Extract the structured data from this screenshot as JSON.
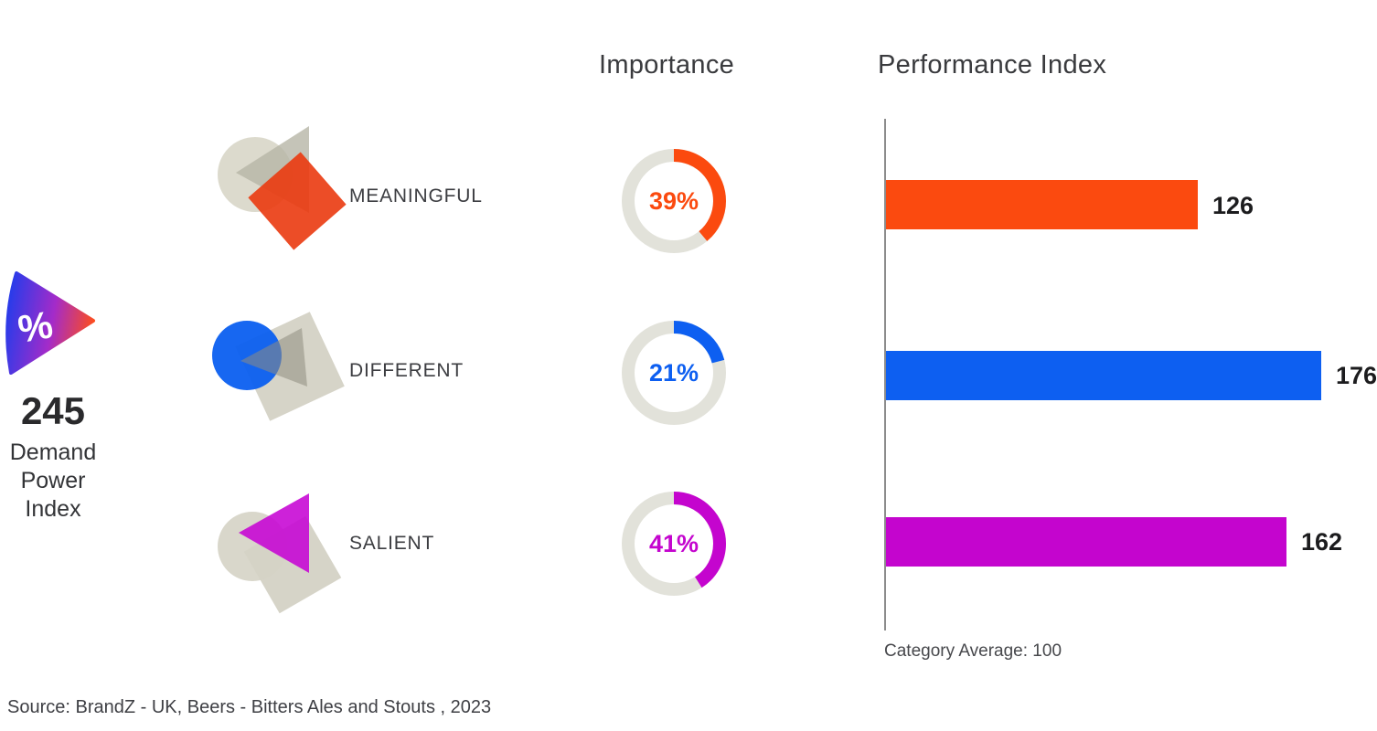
{
  "header": {
    "importance": "Importance",
    "performance": "Performance Index"
  },
  "demand_power": {
    "value": "245",
    "label_lines": [
      "Demand",
      "Power",
      "Index"
    ],
    "icon": "percent-wedge-icon",
    "gradient": [
      "#2b3be9",
      "#a42bc9",
      "#ff4e1a"
    ]
  },
  "metrics": [
    {
      "id": "meaningful",
      "label": "MEANINGFUL",
      "importance_pct": 39,
      "importance_label": "39%",
      "performance": 126,
      "color": "#fb4a0f"
    },
    {
      "id": "different",
      "label": "DIFFERENT",
      "importance_pct": 21,
      "importance_label": "21%",
      "performance": 176,
      "color": "#0d5ff1"
    },
    {
      "id": "salient",
      "label": "SALIENT",
      "importance_pct": 41,
      "importance_label": "41%",
      "performance": 162,
      "color": "#c405ce"
    }
  ],
  "axis_note": "Category Average: 100",
  "source": "Source: BrandZ - UK, Beers - Bitters Ales and Stouts , 2023",
  "colors": {
    "donut_track": "#e2e2da",
    "axis_line": "#8c8c8c",
    "neutral_shape_beige": "#d8d6c8",
    "neutral_shape_grey": "#b7b5a6"
  },
  "chart_data": {
    "type": "bar",
    "orientation": "horizontal",
    "title": "",
    "categories": [
      "MEANINGFUL",
      "DIFFERENT",
      "SALIENT"
    ],
    "series": [
      {
        "name": "Importance",
        "unit": "%",
        "type": "donut",
        "values": [
          39,
          21,
          41
        ]
      },
      {
        "name": "Performance Index",
        "type": "bar",
        "values": [
          126,
          176,
          162
        ]
      }
    ],
    "series_colors": [
      "#fb4a0f",
      "#0d5ff1",
      "#c405ce"
    ],
    "headline_metric": {
      "label": "Demand Power Index",
      "value": 245
    },
    "annotations": [
      "Category Average: 100"
    ],
    "xlim": [
      0,
      197
    ],
    "grid": false,
    "legend": false,
    "source": "Source: BrandZ - UK, Beers - Bitters Ales and Stouts , 2023"
  }
}
